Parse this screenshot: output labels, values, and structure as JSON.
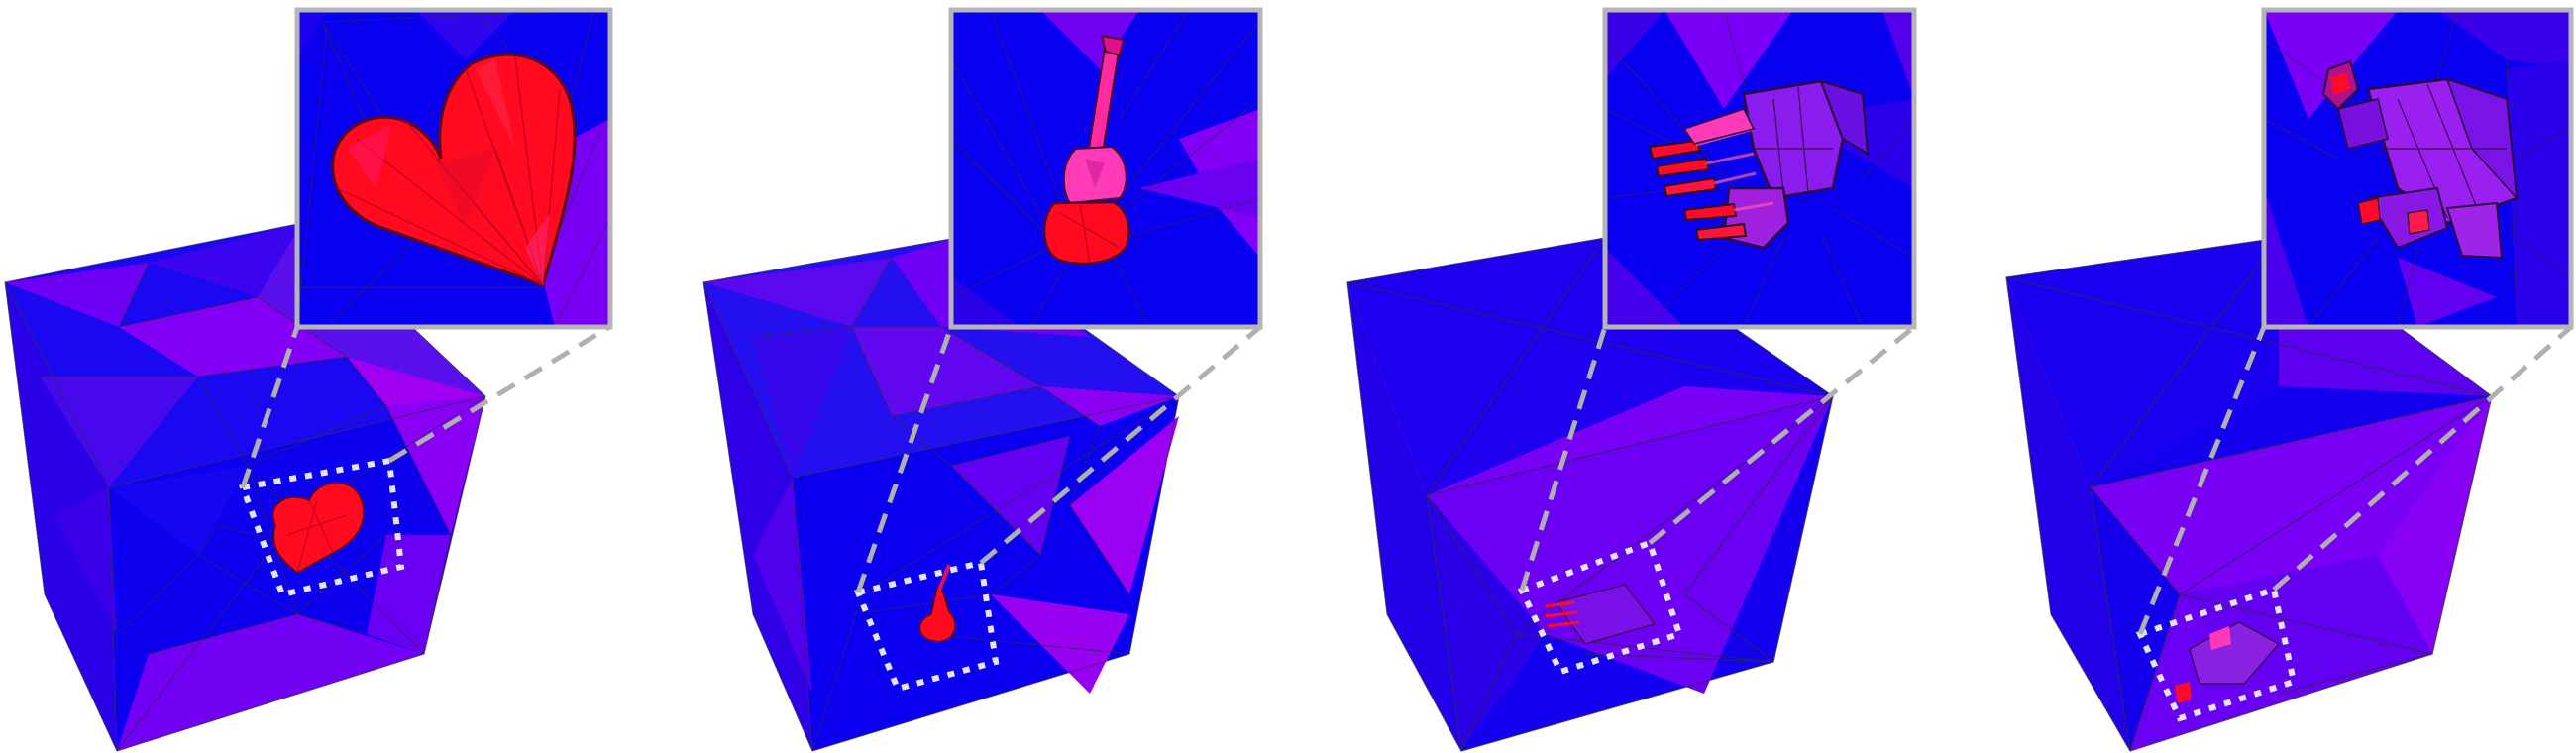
{
  "figure": {
    "background": "#ffffff",
    "palette": {
      "cube_blue": "#0a00f0",
      "cube_violet": "#7a00f5",
      "cube_purple": "#5a12e8",
      "object_red": "#ff0a1e",
      "object_magenta": "#ff22c8",
      "object_pink": "#d91aa8",
      "wire": "#2a2a52",
      "inset_frame": "#b5b5b5",
      "callout": "#b0b0b0",
      "zoom_box": "#e6e6ee"
    },
    "panels": [
      {
        "object": "heart"
      },
      {
        "object": "guitar"
      },
      {
        "object": "hands"
      },
      {
        "object": "figure"
      }
    ]
  }
}
